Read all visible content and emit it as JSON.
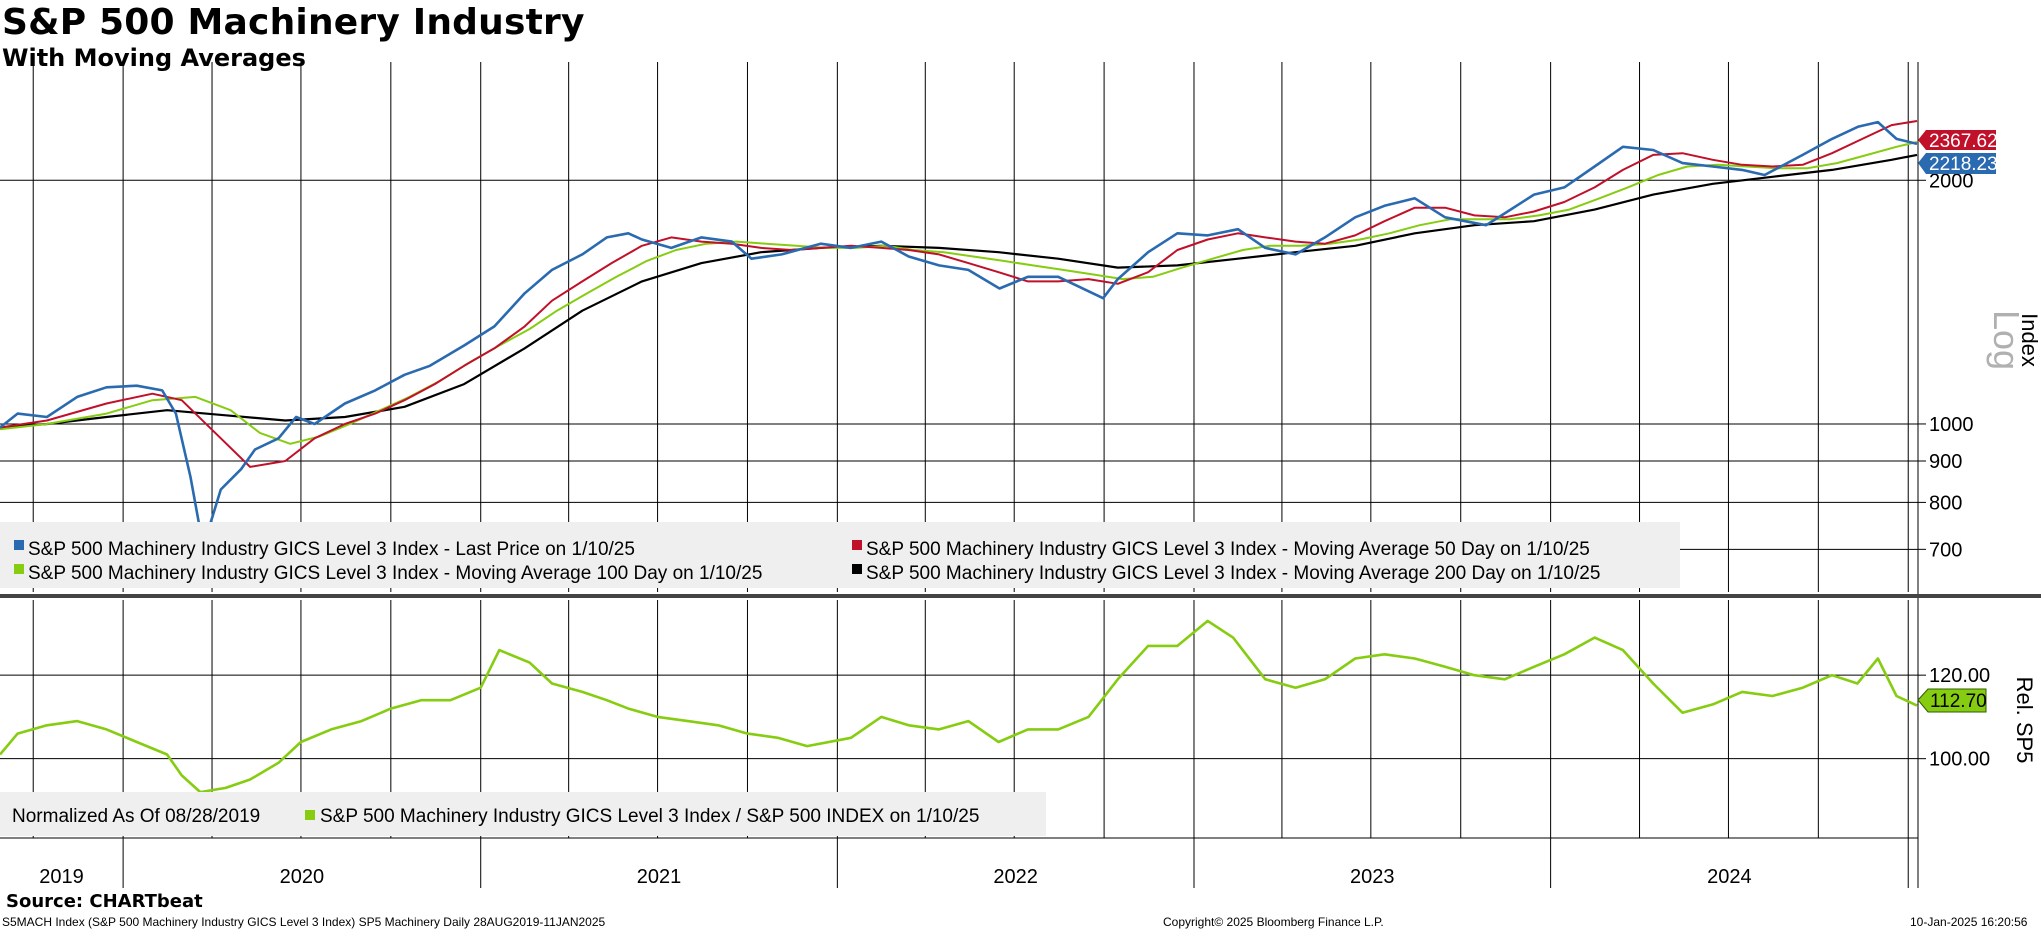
{
  "title": "S&P 500 Machinery Industry",
  "subtitle": "With Moving Averages",
  "source": "Source: CHARTbeat",
  "footer": {
    "left": "S5MACH Index (S&P 500 Machinery Industry GICS Level 3 Index) SP5 Machinery  Daily 28AUG2019-11JAN2025",
    "center": "Copyright© 2025 Bloomberg Finance L.P.",
    "right": "10-Jan-2025 16:20:56"
  },
  "colors": {
    "price": "#2a6ab0",
    "ma50": "#c0102a",
    "ma100": "#86cc10",
    "ma200": "#000000",
    "ratio": "#86cc10"
  },
  "chart_data": [
    {
      "type": "line",
      "title": "S&P 500 Machinery Industry",
      "subtitle": "With Moving Averages",
      "ylabel": "Index",
      "scale_label": "Log",
      "yscale": "log",
      "ylim": [
        620,
        2800
      ],
      "yticks": [
        700,
        800,
        900,
        1000,
        2000
      ],
      "x_tick_labels": [
        "2019",
        "2020",
        "2021",
        "2022",
        "2023",
        "2024"
      ],
      "xlim": [
        "2019-08-28",
        "2025-01-11"
      ],
      "grid": true,
      "legend_placement": "bottom-left",
      "last_value_labels": [
        "2367.62",
        "2218.23"
      ],
      "series": [
        {
          "name": "S&P 500 Machinery Industry GICS Level 3 Index - Last Price on 1/10/25",
          "color": "#2a6ab0",
          "x": [
            "2019-08-28",
            "2019-09-15",
            "2019-10-15",
            "2019-11-15",
            "2019-12-15",
            "2020-01-15",
            "2020-02-10",
            "2020-02-24",
            "2020-03-10",
            "2020-03-23",
            "2020-04-10",
            "2020-05-01",
            "2020-05-15",
            "2020-06-08",
            "2020-06-26",
            "2020-07-15",
            "2020-08-15",
            "2020-09-15",
            "2020-10-15",
            "2020-11-10",
            "2020-12-15",
            "2021-01-15",
            "2021-02-15",
            "2021-03-15",
            "2021-04-15",
            "2021-05-10",
            "2021-06-01",
            "2021-06-15",
            "2021-07-15",
            "2021-08-15",
            "2021-09-15",
            "2021-10-05",
            "2021-11-05",
            "2021-12-15",
            "2022-01-15",
            "2022-02-15",
            "2022-03-15",
            "2022-04-15",
            "2022-05-15",
            "2022-06-16",
            "2022-07-15",
            "2022-08-15",
            "2022-09-30",
            "2022-10-15",
            "2022-11-15",
            "2022-12-15",
            "2023-01-15",
            "2023-02-15",
            "2023-03-15",
            "2023-04-15",
            "2023-05-15",
            "2023-06-15",
            "2023-07-15",
            "2023-08-15",
            "2023-09-15",
            "2023-10-27",
            "2023-11-15",
            "2023-12-15",
            "2024-01-15",
            "2024-02-15",
            "2024-03-15",
            "2024-04-15",
            "2024-05-15",
            "2024-06-15",
            "2024-07-15",
            "2024-08-07",
            "2024-09-15",
            "2024-10-15",
            "2024-11-11",
            "2024-12-01",
            "2024-12-20",
            "2025-01-10"
          ],
          "y": [
            990,
            1030,
            1020,
            1080,
            1110,
            1115,
            1100,
            1030,
            860,
            705,
            830,
            880,
            930,
            960,
            1020,
            1000,
            1060,
            1100,
            1150,
            1180,
            1250,
            1320,
            1450,
            1550,
            1620,
            1700,
            1720,
            1690,
            1650,
            1700,
            1680,
            1600,
            1620,
            1670,
            1650,
            1680,
            1610,
            1570,
            1550,
            1470,
            1520,
            1520,
            1430,
            1510,
            1630,
            1720,
            1710,
            1740,
            1650,
            1620,
            1700,
            1800,
            1860,
            1900,
            1800,
            1760,
            1820,
            1920,
            1960,
            2080,
            2200,
            2180,
            2100,
            2080,
            2060,
            2030,
            2150,
            2250,
            2330,
            2360,
            2250,
            2218.23
          ]
        },
        {
          "name": "S&P 500 Machinery Industry GICS Level 3 Index - Moving Average 50 Day on 1/10/25",
          "color": "#c0102a",
          "x": [
            "2019-08-28",
            "2019-10-15",
            "2019-12-15",
            "2020-01-31",
            "2020-03-01",
            "2020-04-10",
            "2020-05-10",
            "2020-06-15",
            "2020-07-15",
            "2020-08-15",
            "2020-09-15",
            "2020-10-15",
            "2020-11-15",
            "2020-12-15",
            "2021-01-15",
            "2021-02-15",
            "2021-03-15",
            "2021-04-15",
            "2021-05-15",
            "2021-06-15",
            "2021-07-15",
            "2021-08-15",
            "2021-09-15",
            "2021-10-15",
            "2021-11-15",
            "2021-12-15",
            "2022-01-15",
            "2022-02-15",
            "2022-03-15",
            "2022-04-15",
            "2022-05-15",
            "2022-06-15",
            "2022-07-15",
            "2022-08-15",
            "2022-09-15",
            "2022-10-15",
            "2022-11-15",
            "2022-12-15",
            "2023-01-15",
            "2023-02-15",
            "2023-03-15",
            "2023-04-15",
            "2023-05-15",
            "2023-06-15",
            "2023-07-15",
            "2023-08-15",
            "2023-09-15",
            "2023-10-15",
            "2023-11-15",
            "2023-12-15",
            "2024-01-15",
            "2024-02-15",
            "2024-03-15",
            "2024-04-15",
            "2024-05-15",
            "2024-06-15",
            "2024-07-15",
            "2024-08-15",
            "2024-09-15",
            "2024-10-15",
            "2024-11-15",
            "2024-12-15",
            "2025-01-10"
          ],
          "y": [
            990,
            1010,
            1060,
            1090,
            1070,
            960,
            885,
            900,
            960,
            1000,
            1030,
            1070,
            1120,
            1180,
            1240,
            1320,
            1420,
            1500,
            1580,
            1660,
            1700,
            1680,
            1670,
            1650,
            1640,
            1650,
            1660,
            1650,
            1640,
            1620,
            1580,
            1540,
            1500,
            1500,
            1510,
            1490,
            1540,
            1640,
            1690,
            1720,
            1700,
            1680,
            1670,
            1710,
            1780,
            1850,
            1850,
            1810,
            1800,
            1830,
            1880,
            1960,
            2060,
            2150,
            2160,
            2120,
            2090,
            2080,
            2090,
            2160,
            2250,
            2340,
            2367.62
          ]
        },
        {
          "name": "S&P 500 Machinery Industry GICS Level 3 Index - Moving Average 100 Day on 1/10/25",
          "color": "#86cc10",
          "x": [
            "2019-08-28",
            "2019-10-15",
            "2019-12-15",
            "2020-01-31",
            "2020-03-15",
            "2020-04-20",
            "2020-05-20",
            "2020-06-20",
            "2020-07-20",
            "2020-08-20",
            "2020-09-20",
            "2020-10-20",
            "2020-11-20",
            "2020-12-20",
            "2021-01-20",
            "2021-02-20",
            "2021-03-20",
            "2021-04-20",
            "2021-05-20",
            "2021-06-20",
            "2021-07-20",
            "2021-08-20",
            "2021-09-20",
            "2021-10-20",
            "2021-11-20",
            "2021-12-20",
            "2022-01-20",
            "2022-02-20",
            "2022-03-20",
            "2022-04-20",
            "2022-05-20",
            "2022-06-20",
            "2022-07-20",
            "2022-08-20",
            "2022-09-20",
            "2022-10-20",
            "2022-11-20",
            "2022-12-20",
            "2023-01-20",
            "2023-02-20",
            "2023-03-20",
            "2023-04-20",
            "2023-05-20",
            "2023-06-20",
            "2023-07-20",
            "2023-08-20",
            "2023-09-20",
            "2023-10-20",
            "2023-11-20",
            "2023-12-20",
            "2024-01-20",
            "2024-02-20",
            "2024-03-20",
            "2024-04-20",
            "2024-05-20",
            "2024-06-20",
            "2024-07-20",
            "2024-08-20",
            "2024-09-20",
            "2024-10-20",
            "2024-11-20",
            "2024-12-20",
            "2025-01-10"
          ],
          "y": [
            985,
            1000,
            1030,
            1070,
            1080,
            1040,
            975,
            945,
            965,
            1000,
            1040,
            1080,
            1130,
            1190,
            1250,
            1310,
            1380,
            1450,
            1520,
            1590,
            1640,
            1670,
            1680,
            1670,
            1660,
            1650,
            1650,
            1660,
            1640,
            1630,
            1610,
            1590,
            1570,
            1550,
            1530,
            1510,
            1520,
            1560,
            1600,
            1640,
            1660,
            1660,
            1670,
            1690,
            1720,
            1760,
            1790,
            1790,
            1790,
            1810,
            1840,
            1900,
            1960,
            2030,
            2080,
            2090,
            2080,
            2070,
            2070,
            2100,
            2150,
            2200,
            2230
          ]
        },
        {
          "name": "S&P 500 Machinery Industry GICS Level 3 Index - Moving Average 200 Day on 1/10/25",
          "color": "#000000",
          "x": [
            "2019-08-28",
            "2019-10-15",
            "2019-12-15",
            "2020-02-15",
            "2020-04-15",
            "2020-06-15",
            "2020-08-15",
            "2020-10-15",
            "2020-12-15",
            "2021-02-15",
            "2021-04-15",
            "2021-06-15",
            "2021-08-15",
            "2021-10-15",
            "2021-12-15",
            "2022-02-15",
            "2022-04-15",
            "2022-06-15",
            "2022-08-15",
            "2022-10-15",
            "2022-12-15",
            "2023-02-15",
            "2023-04-15",
            "2023-06-15",
            "2023-08-15",
            "2023-10-15",
            "2023-12-15",
            "2024-02-15",
            "2024-04-15",
            "2024-06-15",
            "2024-08-15",
            "2024-10-15",
            "2024-12-15",
            "2025-01-10"
          ],
          "y": [
            990,
            1000,
            1020,
            1040,
            1025,
            1010,
            1020,
            1050,
            1120,
            1240,
            1380,
            1500,
            1580,
            1630,
            1650,
            1660,
            1650,
            1630,
            1600,
            1560,
            1570,
            1600,
            1630,
            1660,
            1720,
            1760,
            1780,
            1840,
            1920,
            1980,
            2020,
            2060,
            2120,
            2150
          ]
        }
      ]
    },
    {
      "type": "line",
      "ylabel": "Rel. SP5",
      "yticks": [
        100.0,
        120.0
      ],
      "ytick_labels": [
        "100.00",
        "120.00"
      ],
      "ylim": [
        81,
        138
      ],
      "x_tick_labels": [
        "2019",
        "2020",
        "2021",
        "2022",
        "2023",
        "2024"
      ],
      "legend_placement": "bottom-left",
      "annotation": "Normalized As Of 08/28/2019",
      "last_value_label": "112.70",
      "series": [
        {
          "name": "S&P 500 Machinery Industry GICS Level 3 Index / S&P 500 INDEX on 1/10/25",
          "color": "#86cc10",
          "x": [
            "2019-08-28",
            "2019-09-15",
            "2019-10-15",
            "2019-11-15",
            "2019-12-15",
            "2020-01-15",
            "2020-02-15",
            "2020-03-01",
            "2020-03-20",
            "2020-04-15",
            "2020-05-10",
            "2020-06-08",
            "2020-07-01",
            "2020-08-01",
            "2020-09-01",
            "2020-10-01",
            "2020-11-01",
            "2020-12-01",
            "2021-01-01",
            "2021-01-20",
            "2021-02-20",
            "2021-03-15",
            "2021-04-15",
            "2021-05-10",
            "2021-06-01",
            "2021-07-01",
            "2021-08-01",
            "2021-09-01",
            "2021-10-01",
            "2021-11-01",
            "2021-12-01",
            "2022-01-15",
            "2022-02-15",
            "2022-03-15",
            "2022-04-15",
            "2022-05-15",
            "2022-06-15",
            "2022-07-15",
            "2022-08-15",
            "2022-09-15",
            "2022-10-15",
            "2022-11-15",
            "2022-12-15",
            "2023-01-15",
            "2023-02-10",
            "2023-03-15",
            "2023-04-15",
            "2023-05-15",
            "2023-06-15",
            "2023-07-15",
            "2023-08-15",
            "2023-09-15",
            "2023-10-15",
            "2023-11-15",
            "2023-12-15",
            "2024-01-15",
            "2024-02-15",
            "2024-03-15",
            "2024-04-15",
            "2024-05-15",
            "2024-06-15",
            "2024-07-15",
            "2024-08-15",
            "2024-09-15",
            "2024-10-15",
            "2024-11-10",
            "2024-12-01",
            "2024-12-20",
            "2025-01-10"
          ],
          "y": [
            101,
            106,
            108,
            109,
            107,
            104,
            101,
            96,
            92,
            93,
            95,
            99,
            104,
            107,
            109,
            112,
            114,
            114,
            117,
            126,
            123,
            118,
            116,
            114,
            112,
            110,
            109,
            108,
            106,
            105,
            103,
            105,
            110,
            108,
            107,
            109,
            104,
            107,
            107,
            110,
            119,
            127,
            127,
            133,
            129,
            119,
            117,
            119,
            124,
            125,
            124,
            122,
            120,
            119,
            122,
            125,
            129,
            126,
            118,
            111,
            113,
            116,
            115,
            117,
            120,
            118,
            124,
            115,
            112.7
          ]
        }
      ]
    }
  ]
}
